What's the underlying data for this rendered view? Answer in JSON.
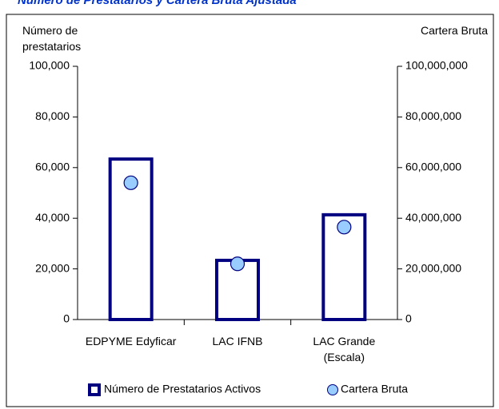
{
  "chart_data": {
    "type": "bar",
    "title": "Número de Prestatarios y Cartera Bruta Ajustada",
    "y_label": "Número de prestatarios",
    "y2_label": "Cartera Bruta",
    "categories": [
      "EDPYME Edyficar",
      "LAC IFNB",
      "LAC Grande (Escala)"
    ],
    "series": [
      {
        "name": "Número de Prestatarios Activos",
        "type": "bar",
        "color": "#000080",
        "values": [
          64000,
          24000,
          42000
        ]
      },
      {
        "name": "Cartera Bruta",
        "type": "scatter",
        "axis": "y2",
        "color": "#99ccff",
        "values": [
          54000000,
          22000000,
          36500000
        ]
      }
    ],
    "ylim": [
      0,
      100000
    ],
    "yticks": [
      0,
      {
        "value": 20000,
        "label": "20,000"
      },
      {
        "value": 40000,
        "label": "40,000"
      },
      {
        "value": 60000,
        "label": "60,000"
      },
      {
        "value": 80000,
        "label": "80,000"
      },
      {
        "value": 100000,
        "label": "100,000"
      }
    ],
    "y2lim": [
      0,
      100000000
    ],
    "y2ticks": [
      0,
      {
        "value": 20000000,
        "label": "20,000,000"
      },
      {
        "value": 40000000,
        "label": "40,000,000"
      },
      {
        "value": 60000000,
        "label": "60,000,000"
      },
      {
        "value": 80000000,
        "label": "80,000,000"
      },
      {
        "value": 100000000,
        "label": "100,000,000"
      }
    ],
    "legend": "bottom",
    "grid": false
  }
}
